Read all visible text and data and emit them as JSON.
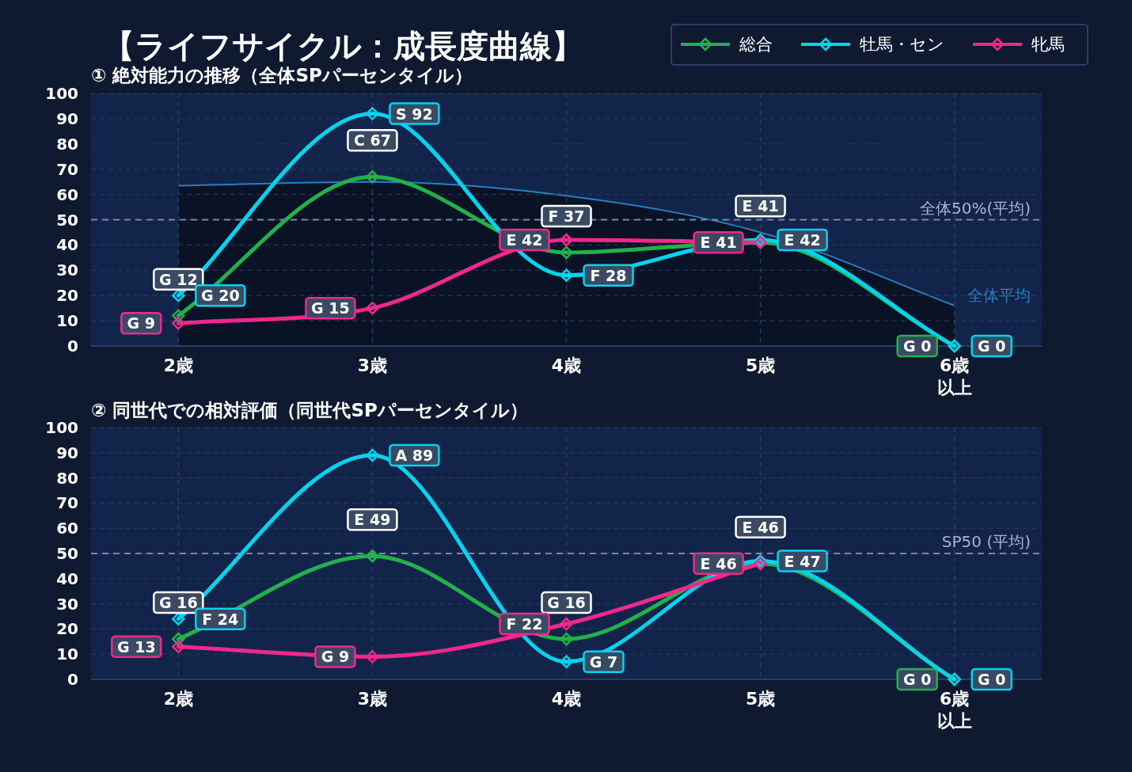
{
  "chart_data": [
    {
      "type": "line",
      "title": "【ライフサイクル：成長度曲線】",
      "subtitle": "① 絶対能力の推移（全体SPパーセンタイル）",
      "categories": [
        "2歳",
        "3歳",
        "4歳",
        "5歳",
        "6歳以上"
      ],
      "series": [
        {
          "name": "全体平均",
          "type": "area",
          "color": "#2a7fc0",
          "marker": "none",
          "values": [
            63.5,
            65,
            59.5,
            45,
            16
          ]
        },
        {
          "name": "総合",
          "color": "#22b14c",
          "values": [
            12,
            67,
            37,
            41,
            0
          ],
          "value_labels": [
            "G 12",
            "C 67",
            "F 37",
            "E 41",
            "G 0"
          ]
        },
        {
          "name": "牡馬・セン",
          "color": "#00d4f0",
          "values": [
            20,
            92,
            28,
            42,
            0
          ],
          "value_labels": [
            "G 20",
            "S 92",
            "F 28",
            "E 42",
            "G 0"
          ]
        },
        {
          "name": "牝馬",
          "color": "#f0288c",
          "values": [
            9,
            15,
            42,
            41,
            null
          ],
          "value_labels": [
            "G 9",
            "G 15",
            "E 42",
            "E 41",
            null
          ]
        }
      ],
      "ylim": [
        0,
        100
      ],
      "yticks": [
        0,
        10,
        20,
        30,
        40,
        50,
        60,
        70,
        80,
        90,
        100
      ],
      "grid": true,
      "marker": "diamond",
      "legend": "top right",
      "ref_lines": [
        {
          "axis": "y",
          "value": 50,
          "label": "全体50%(平均)",
          "line_style": "dashed"
        }
      ]
    },
    {
      "type": "line",
      "title": "② 同世代での相対評価（同世代SPパーセンタイル）",
      "categories": [
        "2歳",
        "3歳",
        "4歳",
        "5歳",
        "6歳以上"
      ],
      "series": [
        {
          "color": "#22b14c",
          "values": [
            16,
            49,
            16,
            46,
            0
          ],
          "value_labels": [
            "G 16",
            "E 49",
            "G 16",
            "E 46",
            "G 0"
          ]
        },
        {
          "color": "#00d4f0",
          "values": [
            24,
            89,
            7,
            47,
            0
          ],
          "value_labels": [
            "F 24",
            "A 89",
            "G 7",
            "E 47",
            "G 0"
          ]
        },
        {
          "color": "#f0288c",
          "values": [
            13,
            9,
            22,
            46,
            null
          ],
          "value_labels": [
            "G 13",
            "G 9",
            "F 22",
            "E 46",
            null
          ]
        }
      ],
      "ylim": [
        0,
        100
      ],
      "yticks": [
        0,
        10,
        20,
        30,
        40,
        50,
        60,
        70,
        80,
        90,
        100
      ],
      "grid": true,
      "marker": "diamond",
      "ref_lines": [
        {
          "axis": "y",
          "value": 50,
          "label": "SP50 (平均)",
          "line_style": "dashed"
        }
      ]
    }
  ]
}
